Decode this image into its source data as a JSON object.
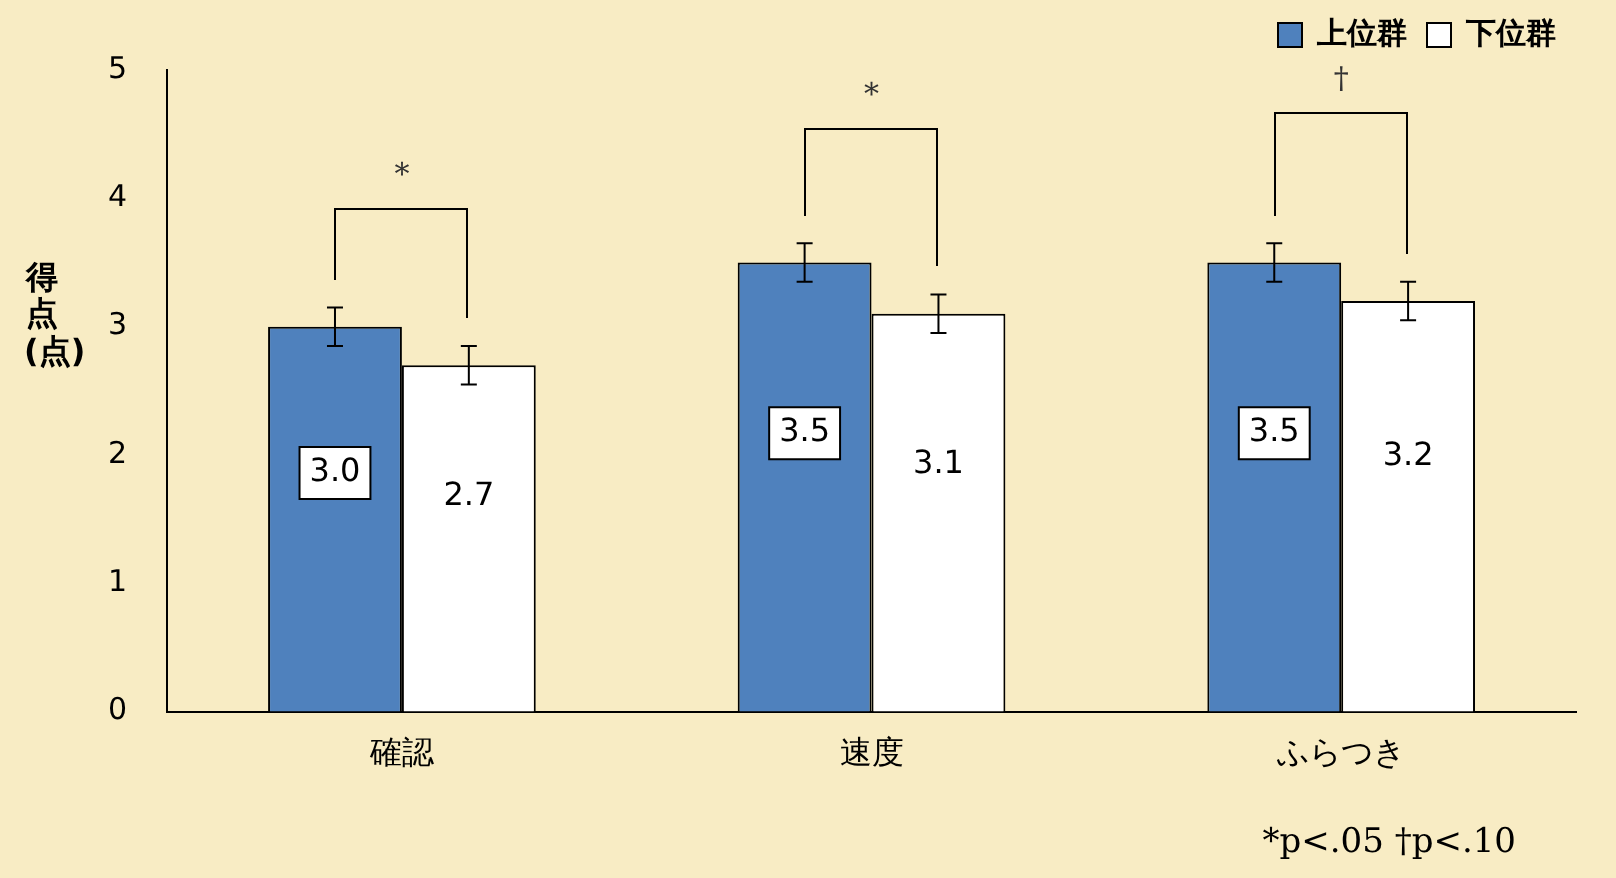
{
  "chart_data": {
    "type": "bar",
    "ylabel": "得点(点)",
    "categories": [
      "確認",
      "速度",
      "ふらつき"
    ],
    "series": [
      {
        "name": "上位群",
        "color": "#4f81bd",
        "values": [
          3.0,
          3.5,
          3.5
        ],
        "errors": [
          0.15,
          0.15,
          0.15
        ],
        "value_labels": [
          "3.0",
          "3.5",
          "3.5"
        ]
      },
      {
        "name": "下位群",
        "color": "#ffffff",
        "values": [
          2.7,
          3.1,
          3.2
        ],
        "errors": [
          0.15,
          0.15,
          0.15
        ],
        "value_labels": [
          "2.7",
          "3.1",
          "3.2"
        ]
      }
    ],
    "ylim": [
      0,
      5
    ],
    "yticks": [
      0,
      1,
      2,
      3,
      4,
      5
    ],
    "grid": false,
    "legend": "top right",
    "annotations": [
      "*",
      "*",
      "†",
      "*p<.05 †p<.10"
    ]
  }
}
